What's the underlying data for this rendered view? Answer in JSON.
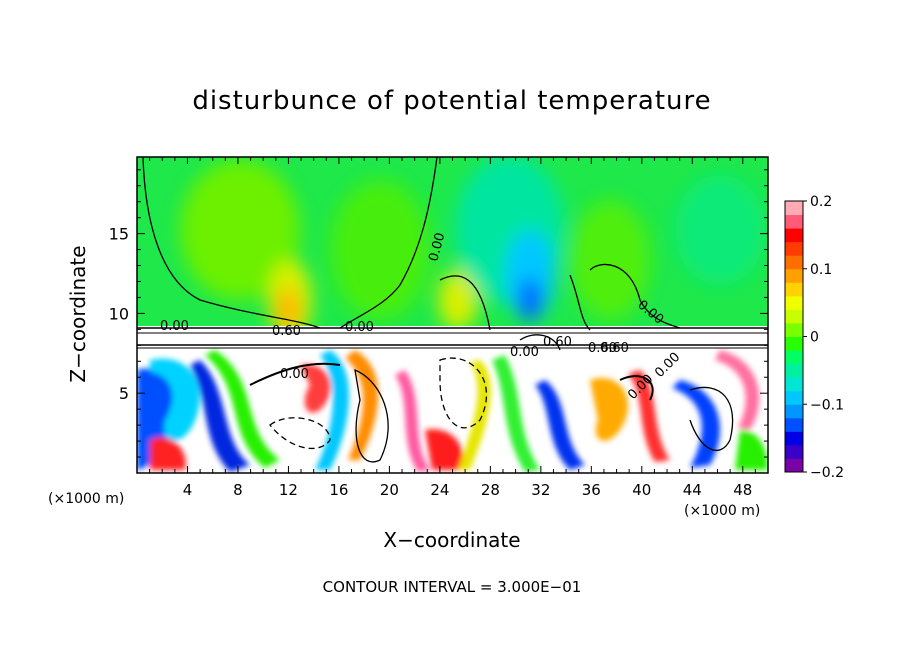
{
  "chart_data": {
    "type": "heatmap",
    "title": "disturbunce of potential temperature",
    "xlabel": "X−coordinate",
    "ylabel": "Z−coordinate",
    "x_unit_label": "(×1000 m)",
    "xlim": [
      0,
      50
    ],
    "ylim": [
      0,
      19.8
    ],
    "x_ticks": [
      4,
      8,
      12,
      16,
      20,
      24,
      28,
      32,
      36,
      40,
      44,
      48
    ],
    "y_ticks": [
      5,
      10,
      15
    ],
    "x_tick_labels": [
      "4",
      "8",
      "12",
      "16",
      "20",
      "24",
      "28",
      "32",
      "36",
      "40",
      "44",
      "48"
    ],
    "y_tick_labels": [
      "5",
      "10",
      "15"
    ],
    "colorbar": {
      "range": [
        -0.2,
        0.2
      ],
      "ticks": [
        0.2,
        0.1,
        0,
        -0.1,
        -0.2
      ],
      "tick_labels": [
        "0.2",
        "0.1",
        "0",
        "−0.1",
        "−0.2"
      ],
      "colors": [
        "#7a00a8",
        "#3a00c8",
        "#0000e6",
        "#0050ff",
        "#0096ff",
        "#00c8ff",
        "#00e6d2",
        "#00f0a0",
        "#00ff64",
        "#28ff00",
        "#78ff00",
        "#c8ff00",
        "#f0ff00",
        "#ffd200",
        "#ffa000",
        "#ff6e00",
        "#ff3c00",
        "#ff0000",
        "#ff5a78",
        "#ffaab4"
      ]
    },
    "contour_labels": [
      "0.00",
      "0.00",
      "0.00",
      "0.00",
      "0.60",
      "0.60",
      "0.60",
      "0.00",
      "0.60",
      "0.00",
      "0.00",
      "0.00"
    ],
    "contour_interval": "CONTOUR INTERVAL = 3.000E−01",
    "regions": [
      {
        "name": "upper",
        "z_range": [
          9.5,
          19.8
        ],
        "dominant_value": 0.0
      },
      {
        "name": "lower",
        "z_range": [
          0,
          8
        ],
        "dominant_value": "mixed, saturated"
      }
    ],
    "blobs": [
      {
        "x": 4,
        "z": 15,
        "value": -0.03
      },
      {
        "x": 10,
        "z": 17,
        "value": 0.03
      },
      {
        "x": 12,
        "z": 10.5,
        "value": 0.12
      },
      {
        "x": 20,
        "z": 15,
        "value": 0.02
      },
      {
        "x": 26,
        "z": 10.5,
        "value": 0.1
      },
      {
        "x": 31,
        "z": 11,
        "value": -0.15
      },
      {
        "x": 30,
        "z": 15,
        "value": -0.05
      },
      {
        "x": 38,
        "z": 15,
        "value": 0.03
      }
    ]
  }
}
